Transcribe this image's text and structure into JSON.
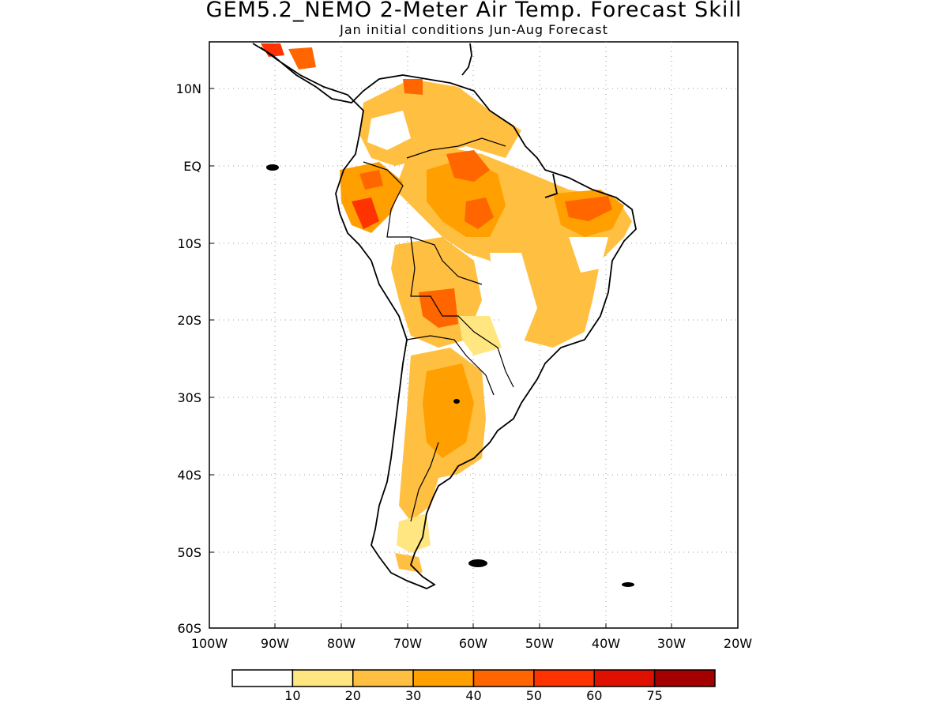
{
  "title": "GEM5.2_NEMO 2-Meter Air Temp. Forecast Skill",
  "subtitle": "Jan initial conditions  Jun-Aug Forecast",
  "map": {
    "region": "South America",
    "lon_range": [
      -100,
      -20
    ],
    "lat_range": [
      -60,
      15
    ],
    "lon_ticks": [
      "100W",
      "90W",
      "80W",
      "70W",
      "60W",
      "50W",
      "40W",
      "30W",
      "20W"
    ],
    "lat_ticks": [
      "10N",
      "EQ",
      "10S",
      "20S",
      "30S",
      "40S",
      "50S",
      "60S"
    ],
    "gridlines": "dotted"
  },
  "colorbar": {
    "labels": [
      "10",
      "20",
      "30",
      "40",
      "50",
      "60",
      "75"
    ],
    "colors": [
      "#ffffff",
      "#ffe680",
      "#ffbf40",
      "#ff9f00",
      "#ff6600",
      "#ff3300",
      "#e01000",
      "#a50000"
    ]
  },
  "colors": {
    "land_outline": "#000000",
    "frame": "#000000"
  }
}
